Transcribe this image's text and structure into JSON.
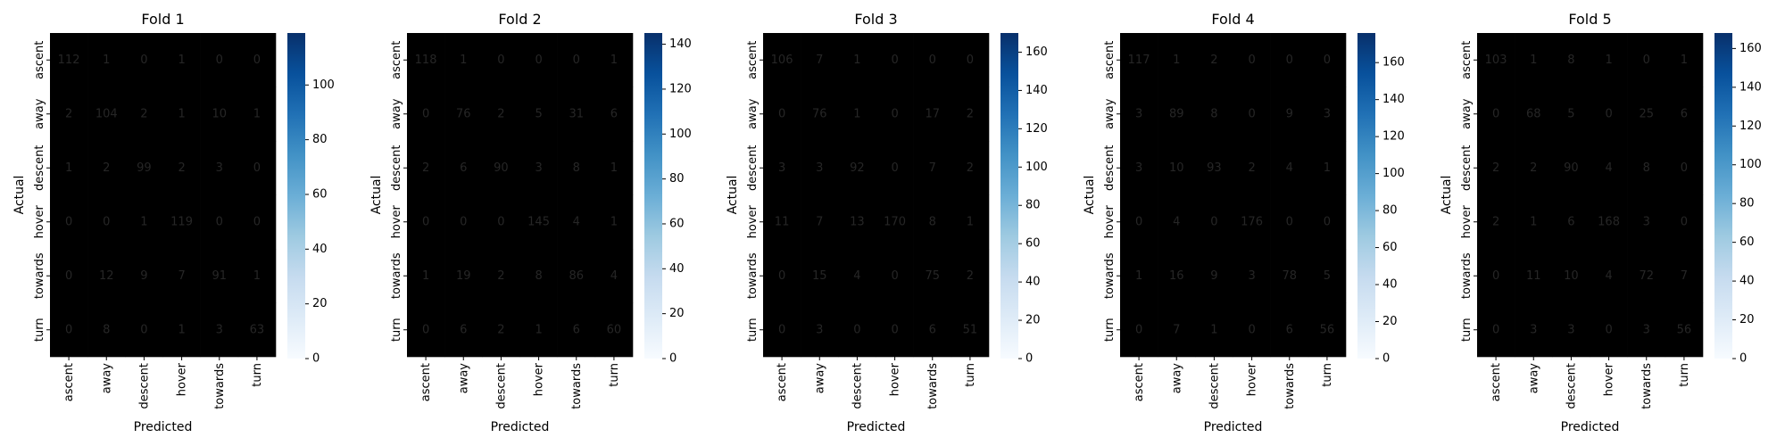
{
  "figure": {
    "xlabel": "Predicted",
    "ylabel": "Actual",
    "class_labels": [
      "ascent",
      "away",
      "descent",
      "hover",
      "towards",
      "turn"
    ],
    "colormap": "Blues"
  },
  "chart_data": [
    {
      "type": "heatmap",
      "title": "Fold 1",
      "xlabel": "Predicted",
      "ylabel": "Actual",
      "x_categories": [
        "ascent",
        "away",
        "descent",
        "hover",
        "towards",
        "turn"
      ],
      "y_categories": [
        "ascent",
        "away",
        "descent",
        "hover",
        "towards",
        "turn"
      ],
      "values": [
        [
          112,
          1,
          0,
          1,
          0,
          0
        ],
        [
          2,
          104,
          2,
          1,
          10,
          1
        ],
        [
          1,
          2,
          99,
          2,
          3,
          0
        ],
        [
          0,
          0,
          1,
          119,
          0,
          0
        ],
        [
          0,
          12,
          9,
          7,
          91,
          1
        ],
        [
          0,
          8,
          0,
          1,
          3,
          63
        ]
      ],
      "colorbar_range": [
        0,
        119
      ],
      "colorbar_ticks": [
        0,
        20,
        40,
        60,
        80,
        100
      ]
    },
    {
      "type": "heatmap",
      "title": "Fold 2",
      "xlabel": "Predicted",
      "ylabel": "Actual",
      "x_categories": [
        "ascent",
        "away",
        "descent",
        "hover",
        "towards",
        "turn"
      ],
      "y_categories": [
        "ascent",
        "away",
        "descent",
        "hover",
        "towards",
        "turn"
      ],
      "values": [
        [
          118,
          1,
          0,
          0,
          0,
          1
        ],
        [
          0,
          76,
          2,
          5,
          31,
          6
        ],
        [
          2,
          6,
          90,
          3,
          8,
          1
        ],
        [
          0,
          0,
          0,
          145,
          4,
          1
        ],
        [
          1,
          19,
          2,
          8,
          86,
          4
        ],
        [
          0,
          6,
          2,
          1,
          6,
          60
        ]
      ],
      "colorbar_range": [
        0,
        145
      ],
      "colorbar_ticks": [
        0,
        20,
        40,
        60,
        80,
        100,
        120,
        140
      ]
    },
    {
      "type": "heatmap",
      "title": "Fold 3",
      "xlabel": "Predicted",
      "ylabel": "Actual",
      "x_categories": [
        "ascent",
        "away",
        "descent",
        "hover",
        "towards",
        "turn"
      ],
      "y_categories": [
        "ascent",
        "away",
        "descent",
        "hover",
        "towards",
        "turn"
      ],
      "values": [
        [
          106,
          7,
          1,
          0,
          0,
          0
        ],
        [
          0,
          76,
          1,
          0,
          17,
          2
        ],
        [
          3,
          3,
          92,
          0,
          7,
          2
        ],
        [
          11,
          7,
          13,
          170,
          8,
          1
        ],
        [
          0,
          15,
          4,
          0,
          75,
          2
        ],
        [
          0,
          3,
          0,
          0,
          6,
          51
        ]
      ],
      "colorbar_range": [
        0,
        170
      ],
      "colorbar_ticks": [
        0,
        20,
        40,
        60,
        80,
        100,
        120,
        140,
        160
      ]
    },
    {
      "type": "heatmap",
      "title": "Fold 4",
      "xlabel": "Predicted",
      "ylabel": "Actual",
      "x_categories": [
        "ascent",
        "away",
        "descent",
        "hover",
        "towards",
        "turn"
      ],
      "y_categories": [
        "ascent",
        "away",
        "descent",
        "hover",
        "towards",
        "turn"
      ],
      "values": [
        [
          117,
          1,
          2,
          0,
          0,
          0
        ],
        [
          3,
          89,
          8,
          0,
          9,
          3
        ],
        [
          3,
          10,
          93,
          2,
          4,
          1
        ],
        [
          0,
          4,
          0,
          176,
          0,
          0
        ],
        [
          1,
          16,
          9,
          3,
          78,
          5
        ],
        [
          0,
          7,
          1,
          0,
          6,
          56
        ]
      ],
      "colorbar_range": [
        0,
        176
      ],
      "colorbar_ticks": [
        0,
        20,
        40,
        60,
        80,
        100,
        120,
        140,
        160
      ]
    },
    {
      "type": "heatmap",
      "title": "Fold 5",
      "xlabel": "Predicted",
      "ylabel": "Actual",
      "x_categories": [
        "ascent",
        "away",
        "descent",
        "hover",
        "towards",
        "turn"
      ],
      "y_categories": [
        "ascent",
        "away",
        "descent",
        "hover",
        "towards",
        "turn"
      ],
      "values": [
        [
          103,
          1,
          8,
          1,
          0,
          1
        ],
        [
          0,
          68,
          5,
          0,
          25,
          6
        ],
        [
          2,
          2,
          90,
          4,
          8,
          0
        ],
        [
          2,
          1,
          6,
          168,
          3,
          0
        ],
        [
          0,
          11,
          10,
          4,
          72,
          7
        ],
        [
          0,
          3,
          3,
          0,
          3,
          56
        ]
      ],
      "colorbar_range": [
        0,
        168
      ],
      "colorbar_ticks": [
        0,
        20,
        40,
        60,
        80,
        100,
        120,
        140,
        160
      ]
    }
  ]
}
